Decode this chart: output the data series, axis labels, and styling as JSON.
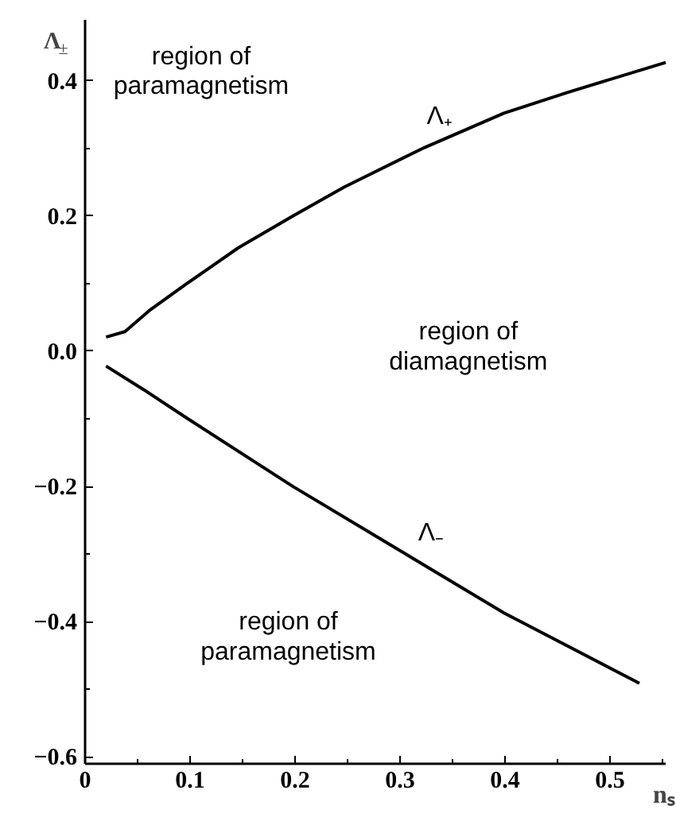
{
  "chart_data": {
    "type": "line",
    "xlabel": "nₛ",
    "ylabel": "Λ$_{±}$",
    "xlim": [
      0,
      0.553
    ],
    "ylim": [
      -0.61,
      0.49
    ],
    "xticks": [
      0,
      0.1,
      0.2,
      0.3,
      0.4,
      0.5
    ],
    "yticks": [
      {
        "value": -0.6,
        "label": "−0.6"
      },
      {
        "value": -0.4,
        "label": "−0.4"
      },
      {
        "value": -0.2,
        "label": "−0.2"
      },
      {
        "value": 0,
        "label": "0.0"
      },
      {
        "value": 0.2,
        "label": "0.2"
      },
      {
        "value": 0.4,
        "label": "0.4"
      }
    ],
    "grid": false,
    "marker": "none",
    "line_style": "solid",
    "series": [
      {
        "color": "#000000",
        "x": [
          0.02,
          0.038,
          0.061,
          0.096,
          0.146,
          0.198,
          0.247,
          0.323,
          0.399,
          0.46,
          0.553
        ],
        "values": [
          0.021,
          0.029,
          0.06,
          0.099,
          0.153,
          0.2,
          0.243,
          0.301,
          0.352,
          0.383,
          0.427
        ]
      },
      {
        "color": "#000000",
        "x": [
          0.02,
          0.056,
          0.098,
          0.198,
          0.298,
          0.399,
          0.528
        ],
        "values": [
          -0.022,
          -0.057,
          -0.1,
          -0.2,
          -0.293,
          -0.387,
          -0.491
        ]
      }
    ],
    "annotations": [
      "region of\nparamagnetism",
      "Λ₊",
      "region of\ndiamagnetism",
      "Λ₋",
      "region of\nparamagnetism"
    ]
  }
}
